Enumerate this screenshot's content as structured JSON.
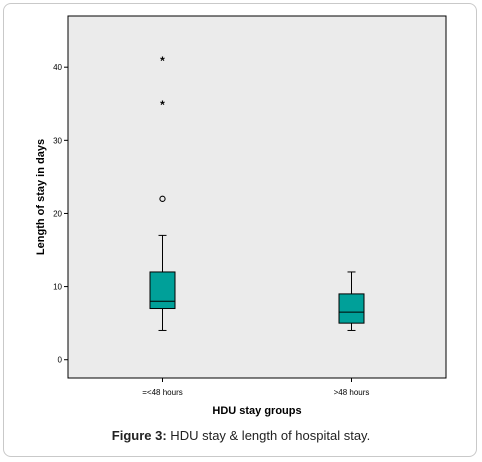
{
  "chart_data": {
    "type": "box",
    "title": "",
    "xlabel": "HDU stay groups",
    "ylabel": "Length of stay in days",
    "ylim": [
      -2.5,
      47
    ],
    "yticks": [
      0,
      10,
      20,
      30,
      40
    ],
    "categories": [
      "=<48 hours",
      ">48 hours"
    ],
    "boxes": [
      {
        "category": "=<48 hours",
        "min": 4,
        "q1": 7,
        "median": 8,
        "q3": 12,
        "max": 17,
        "outliers": [
          22
        ],
        "extremes": [
          35,
          41
        ]
      },
      {
        "category": ">48 hours",
        "min": 4,
        "q1": 5,
        "median": 6.5,
        "q3": 9,
        "max": 12,
        "outliers": [],
        "extremes": []
      }
    ],
    "colors": {
      "plot_background": "#ebebeb",
      "box_fill": "#00a099",
      "line": "#000000"
    },
    "grid": false,
    "legend": "none"
  },
  "caption": {
    "label": "Figure 3:",
    "text": " HDU stay &  length of hospital stay."
  }
}
